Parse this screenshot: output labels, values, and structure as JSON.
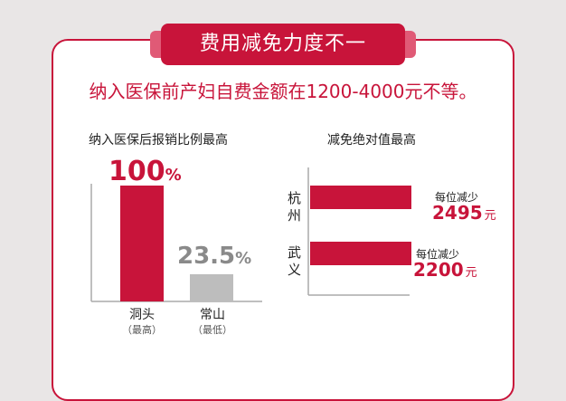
{
  "banner": {
    "title": "费用减免力度不一"
  },
  "headline": "纳入医保前产妇自费金额在1200-4000元不等。",
  "chart_data": [
    {
      "type": "bar",
      "title": "纳入医保后报销比例最高",
      "categories": [
        "洞头",
        "常山"
      ],
      "notes": [
        "（最高）",
        "（最低）"
      ],
      "values": [
        100,
        23.5
      ],
      "value_labels": [
        "100",
        "23.5"
      ],
      "unit": "%",
      "ylim": [
        0,
        100
      ],
      "colors": [
        "#c8143a",
        "#bdbdbd"
      ]
    },
    {
      "type": "bar",
      "orientation": "horizontal",
      "title": "减免绝对值最高",
      "categories": [
        "杭州",
        "武义"
      ],
      "values": [
        2495,
        2200
      ],
      "prefix_label": "每位减少",
      "unit": "元",
      "color": "#c8143a"
    }
  ]
}
